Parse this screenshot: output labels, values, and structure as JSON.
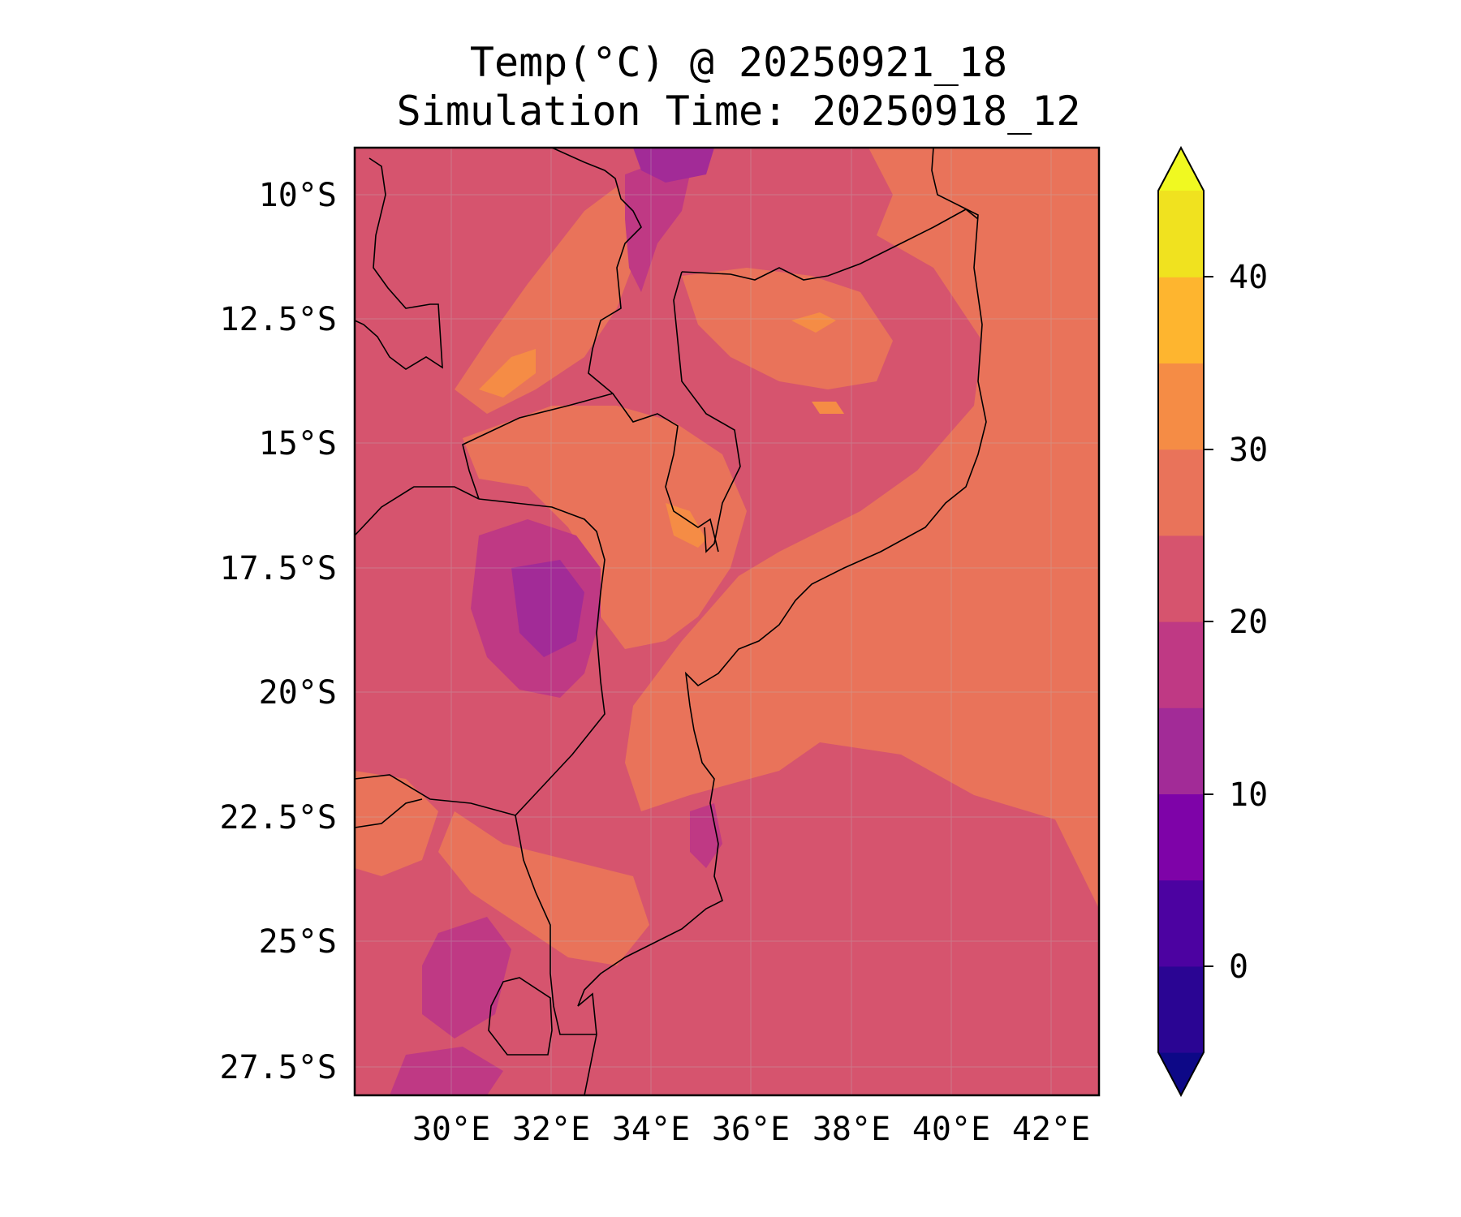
{
  "title_line1": "Temp(°C) @ 20250921_18",
  "title_line2": "Simulation Time: 20250918_12",
  "lat_ticks": [
    "10°S",
    "12.5°S",
    "15°S",
    "17.5°S",
    "20°S",
    "22.5°S",
    "25°S",
    "27.5°S"
  ],
  "lon_ticks": [
    "30°E",
    "32°E",
    "34°E",
    "36°E",
    "38°E",
    "40°E",
    "42°E"
  ],
  "colorbar": {
    "ticks": [
      "0",
      "10",
      "20",
      "30",
      "40"
    ],
    "levels": [
      -5,
      0,
      5,
      10,
      15,
      20,
      25,
      30,
      35,
      40,
      45
    ],
    "colors": [
      "#0d0887",
      "#2a0593",
      "#4c02a1",
      "#7e03a8",
      "#a22b97",
      "#bf3984",
      "#d6546e",
      "#e9735a",
      "#f58c45",
      "#feb52f",
      "#f0e21f",
      "#f0f921"
    ],
    "extend": "both"
  },
  "field_colors": {
    "warm": "#e9735a",
    "mild": "#d6546e",
    "cool": "#bf3984",
    "cold": "#a22b97",
    "hot": "#f58c45",
    "border": "#000000"
  }
}
